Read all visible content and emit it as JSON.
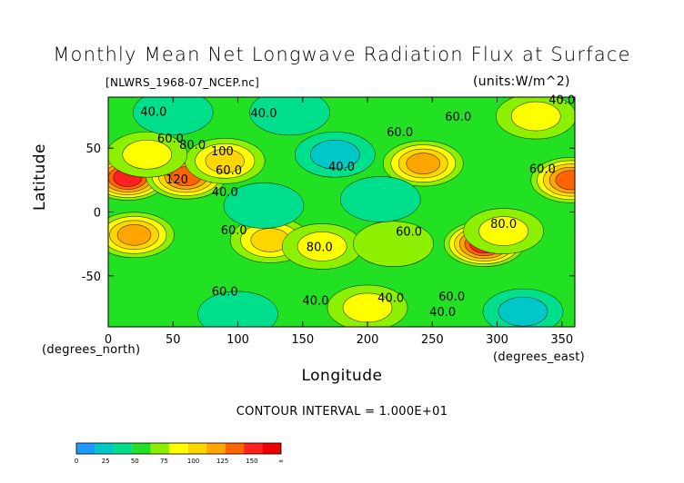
{
  "chart_data": {
    "type": "heatmap",
    "title": "Monthly Mean Net Longwave Radiation Flux at Surface",
    "file_label": "[NLWRS_1968-07_NCEP.nc]",
    "units_label": "(units:W/m^2)",
    "xlabel": "Longitude",
    "ylabel": "Latitude",
    "x_unit_label": "(degrees_east)",
    "y_unit_label": "(degrees_north)",
    "xlim": [
      0,
      360
    ],
    "ylim": [
      -90,
      90
    ],
    "x_ticks": [
      0,
      50,
      100,
      150,
      200,
      250,
      300,
      350
    ],
    "y_ticks": [
      -50,
      0,
      50
    ],
    "contour_interval_text": "CONTOUR INTERVAL = 1.000E+01",
    "colorbar": {
      "levels": [
        "0",
        "25",
        "50",
        "75",
        "100",
        "125",
        "150",
        "∞"
      ],
      "colors": [
        "#1e9bff",
        "#00c8c8",
        "#00e08c",
        "#22e022",
        "#8cf000",
        "#ffff00",
        "#ffd700",
        "#ffa500",
        "#ff6400",
        "#ff2020",
        "#ee0000"
      ]
    },
    "background_value": 50,
    "features": [
      {
        "lon": 15,
        "lat": 27,
        "value": 140
      },
      {
        "lon": 60,
        "lat": 28,
        "value": 130
      },
      {
        "lon": 90,
        "lat": 40,
        "value": 100
      },
      {
        "lon": 30,
        "lat": 45,
        "value": 85
      },
      {
        "lon": 20,
        "lat": -18,
        "value": 105
      },
      {
        "lon": 125,
        "lat": -22,
        "value": 100
      },
      {
        "lon": 165,
        "lat": -27,
        "value": 80
      },
      {
        "lon": 220,
        "lat": -25,
        "value": 70
      },
      {
        "lon": 243,
        "lat": 38,
        "value": 115
      },
      {
        "lon": 290,
        "lat": -25,
        "value": 135
      },
      {
        "lon": 305,
        "lat": -15,
        "value": 85
      },
      {
        "lon": 357,
        "lat": 25,
        "value": 120
      },
      {
        "lon": 330,
        "lat": 75,
        "value": 80
      },
      {
        "lon": 175,
        "lat": 45,
        "value": 25
      },
      {
        "lon": 120,
        "lat": 5,
        "value": 30
      },
      {
        "lon": 210,
        "lat": 10,
        "value": 35
      },
      {
        "lon": 320,
        "lat": -78,
        "value": 20
      },
      {
        "lon": 100,
        "lat": -80,
        "value": 35
      },
      {
        "lon": 200,
        "lat": -75,
        "value": 80
      },
      {
        "lon": 140,
        "lat": 78,
        "value": 35
      },
      {
        "lon": 50,
        "lat": 78,
        "value": 35
      }
    ],
    "contour_labels": [
      {
        "lon": 35,
        "lat": 78,
        "text": "40.0"
      },
      {
        "lon": 120,
        "lat": 77,
        "text": "40.0"
      },
      {
        "lon": 48,
        "lat": 57,
        "text": "60.0"
      },
      {
        "lon": 65,
        "lat": 52,
        "text": "80.0"
      },
      {
        "lon": 88,
        "lat": 47,
        "text": "100"
      },
      {
        "lon": 53,
        "lat": 25,
        "text": "120"
      },
      {
        "lon": 93,
        "lat": 32,
        "text": "60.0"
      },
      {
        "lon": 90,
        "lat": 15,
        "text": "40.0"
      },
      {
        "lon": 180,
        "lat": 35,
        "text": "40.0"
      },
      {
        "lon": 225,
        "lat": 62,
        "text": "60.0"
      },
      {
        "lon": 270,
        "lat": 74,
        "text": "60.0"
      },
      {
        "lon": 350,
        "lat": 87,
        "text": "40.0"
      },
      {
        "lon": 335,
        "lat": 33,
        "text": "60.0"
      },
      {
        "lon": 97,
        "lat": -15,
        "text": "60.0"
      },
      {
        "lon": 163,
        "lat": -28,
        "text": "80.0"
      },
      {
        "lon": 232,
        "lat": -16,
        "text": "60.0"
      },
      {
        "lon": 305,
        "lat": -10,
        "text": "80.0"
      },
      {
        "lon": 90,
        "lat": -63,
        "text": "60.0"
      },
      {
        "lon": 160,
        "lat": -70,
        "text": "40.0"
      },
      {
        "lon": 218,
        "lat": -68,
        "text": "40.0"
      },
      {
        "lon": 265,
        "lat": -67,
        "text": "60.0"
      },
      {
        "lon": 258,
        "lat": -79,
        "text": "40.0"
      }
    ]
  }
}
